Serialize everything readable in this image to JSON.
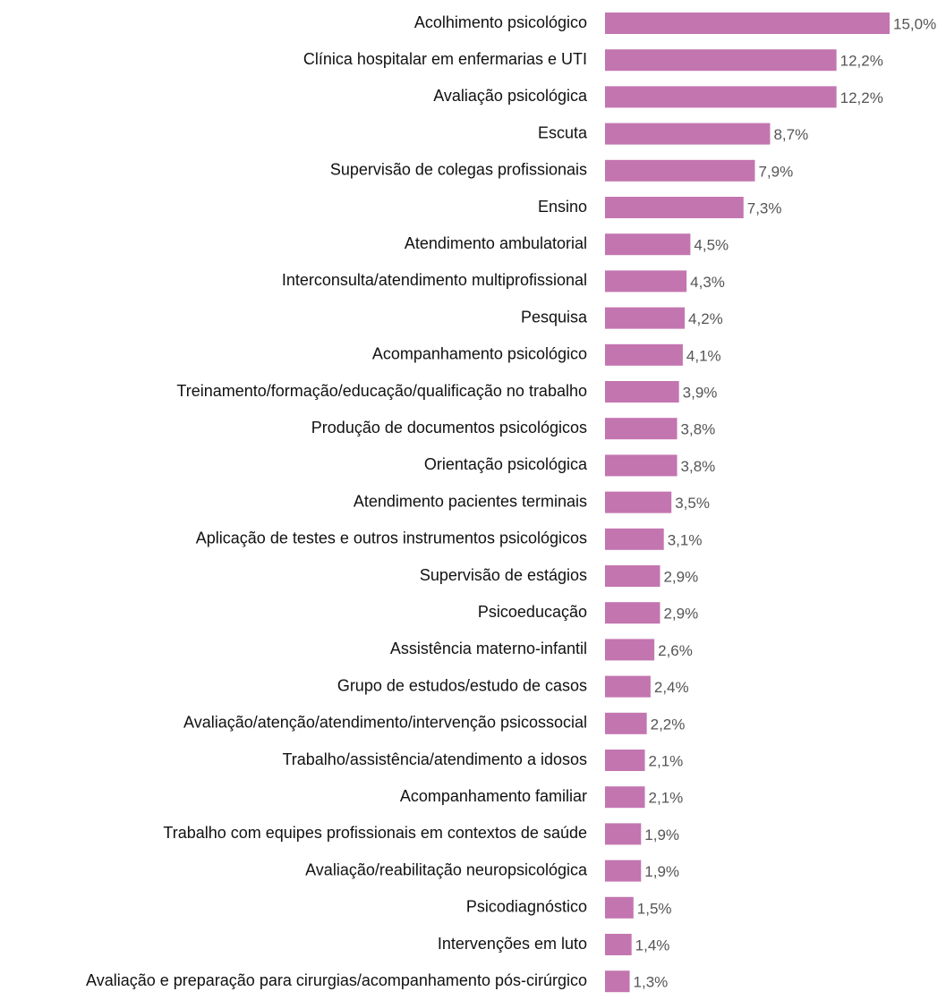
{
  "chart_data": {
    "type": "bar",
    "orientation": "horizontal",
    "color": "#c375b0",
    "categories": [
      "Acolhimento psicológico",
      "Clínica hospitalar em enfermarias e UTI",
      "Avaliação psicológica",
      "Escuta",
      "Supervisão de colegas profissionais",
      "Ensino",
      "Atendimento ambulatorial",
      "Interconsulta/atendimento multiprofissional",
      "Pesquisa",
      "Acompanhamento psicológico",
      "Treinamento/formação/educação/qualificação no trabalho",
      "Produção de documentos psicológicos",
      "Orientação psicológica",
      "Atendimento pacientes terminais",
      "Aplicação de testes e outros instrumentos psicológicos",
      "Supervisão de estágios",
      "Psicoeducação",
      "Assistência materno-infantil",
      "Grupo de estudos/estudo de casos",
      "Avaliação/atenção/atendimento/intervenção psicossocial",
      "Trabalho/assistência/atendimento a idosos",
      "Acompanhamento familiar",
      "Trabalho com equipes profissionais em contextos de saúde",
      "Avaliação/reabilitação neuropsicológica",
      "Psicodiagnóstico",
      "Intervenções em luto",
      "Avaliação e preparação para cirurgias/acompanhamento pós-cirúrgico"
    ],
    "values": [
      15.0,
      12.2,
      12.2,
      8.7,
      7.9,
      7.3,
      4.5,
      4.3,
      4.2,
      4.1,
      3.9,
      3.8,
      3.8,
      3.5,
      3.1,
      2.9,
      2.9,
      2.6,
      2.4,
      2.2,
      2.1,
      2.1,
      1.9,
      1.9,
      1.5,
      1.4,
      1.3
    ],
    "value_labels": [
      "15,0%",
      "12,2%",
      "12,2%",
      "8,7%",
      "7,9%",
      "7,3%",
      "4,5%",
      "4,3%",
      "4,2%",
      "4,1%",
      "3,9%",
      "3,8%",
      "3,8%",
      "3,5%",
      "3,1%",
      "2,9%",
      "2,9%",
      "2,6%",
      "2,4%",
      "2,2%",
      "2,1%",
      "2,1%",
      "1,9%",
      "1,9%",
      "1,5%",
      "1,4%",
      "1,3%"
    ]
  }
}
